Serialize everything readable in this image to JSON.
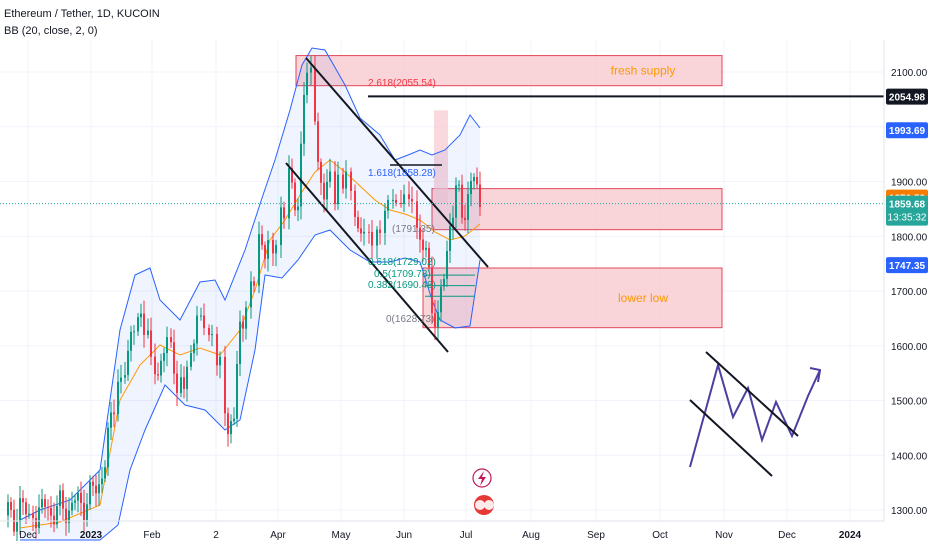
{
  "header": {
    "symbol_line": "Ethereum / Tether, 1D, KUCOIN",
    "indicator_line": "BB (20, close, 2, 0)"
  },
  "icons": {
    "lightning": "lightning-icon",
    "flag": "us-flag-icon"
  },
  "colors": {
    "up": "#089981",
    "down": "#f23645",
    "zone_fill": "#f7c9cf",
    "zone_border": "#e0495a",
    "bb_mid": "#ff9800",
    "bb_band": "#2962ff",
    "price_line": "#26a69a",
    "zone_text": "#ff9800",
    "fib_red": "#f23645",
    "fib_blue": "#2962ff",
    "fib_green": "#089981",
    "fib_gray": "#787b86",
    "projection": "#4b3fa0"
  },
  "chart_data": {
    "type": "candlestick",
    "title": "Ethereum / Tether, 1D, KUCOIN",
    "ylim": [
      1280,
      2180
    ],
    "y_ticks": [
      1300,
      1400,
      1500,
      1600,
      1700,
      1800,
      1900,
      2000,
      2100
    ],
    "y_tick_labels": [
      "1300.00",
      "1400.00",
      "1500.00",
      "1600.00",
      "1700.00",
      "1800.00",
      "1900.00",
      "2000.00",
      "2100.00"
    ],
    "x_ticks": [
      "Dec",
      "2023",
      "Feb",
      "2",
      "Apr",
      "May",
      "Jun",
      "Jul",
      "Aug",
      "Sep",
      "Oct",
      "Nov",
      "Dec",
      "2024"
    ],
    "price_labels": [
      {
        "label": "2054.98",
        "value": 2054.98,
        "style": "black"
      },
      {
        "label": "1993.69",
        "value": 1993.69,
        "style": "blue"
      },
      {
        "label": "1870.52",
        "value": 1870.52,
        "style": "orange"
      },
      {
        "label": "1859.68",
        "value": 1859.68,
        "style": "teal",
        "sub": "13:35:32"
      },
      {
        "label": "1747.35",
        "value": 1747.35,
        "style": "blue"
      }
    ],
    "zones": [
      {
        "label": "fresh supply",
        "low": 2075,
        "high": 2130
      },
      {
        "label": "",
        "low": 1812,
        "high": 1887
      },
      {
        "label": "lower low",
        "low": 1633,
        "high": 1742
      }
    ],
    "fib_levels": [
      {
        "label": "2.618(2055.54)",
        "value": 2055.54,
        "color": "red"
      },
      {
        "label": "1.618(1858.28)",
        "value": 1858.28,
        "color": "blue"
      },
      {
        "label": "(1791.35)",
        "value": 1791.35,
        "color": "gray"
      },
      {
        "label": "0.618(1729.02)",
        "value": 1729.02,
        "color": "green"
      },
      {
        "label": "0.5(1709.78)",
        "value": 1709.78,
        "color": "green"
      },
      {
        "label": "0.382(1690.48)",
        "value": 1690.48,
        "color": "green"
      },
      {
        "label": "0(1628.73)",
        "value": 1628.73,
        "color": "gray"
      }
    ],
    "current_price": 1859.68
  }
}
